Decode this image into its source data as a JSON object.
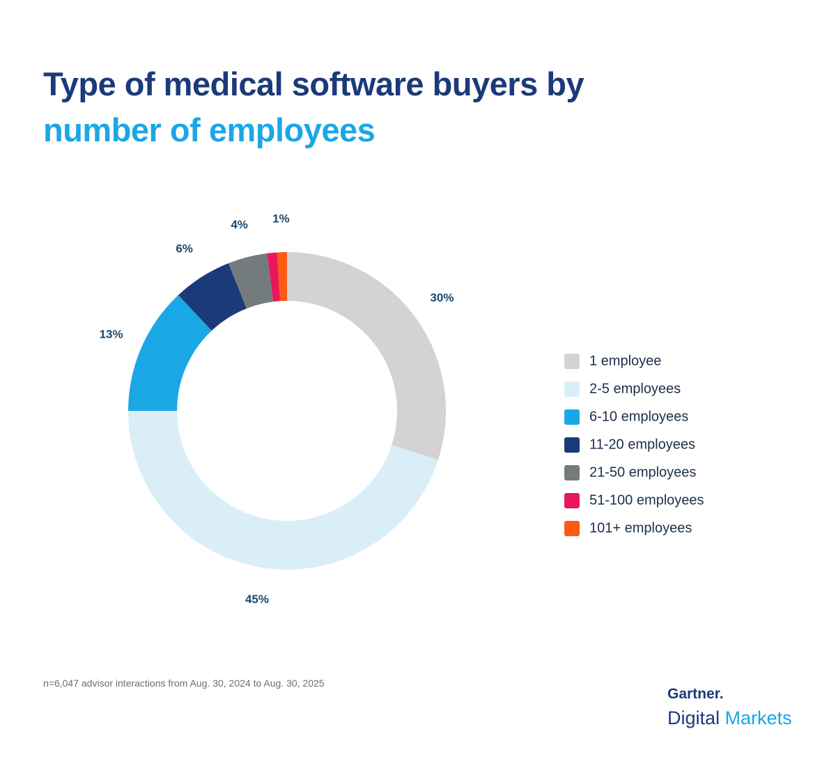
{
  "chart_data": {
    "type": "donut",
    "title": [
      "Type of medical software buyers by",
      "number of employees"
    ],
    "categories": [
      "1 employee",
      "2-5 employees",
      "6-10 employees",
      "11-20 employees",
      "21-50 employees",
      "51-100 employees",
      "101+ employees"
    ],
    "values": [
      30,
      45,
      13,
      6,
      4,
      1,
      1
    ],
    "value_labels": [
      "30%",
      "45%",
      "13%",
      "6%",
      "4%",
      null,
      "1%"
    ],
    "colors": [
      "#d3d3d3",
      "#daeef7",
      "#1aa7e5",
      "#1b3a7a",
      "#747b7d",
      "#e8175d",
      "#fc5a14"
    ],
    "legend": "right",
    "footnote": "n=6,047 advisor interactions from Aug. 30, 2024 to Aug. 30, 2025"
  },
  "logo": {
    "brand": "Gartner.",
    "product": [
      "Digital",
      "Markets"
    ]
  }
}
